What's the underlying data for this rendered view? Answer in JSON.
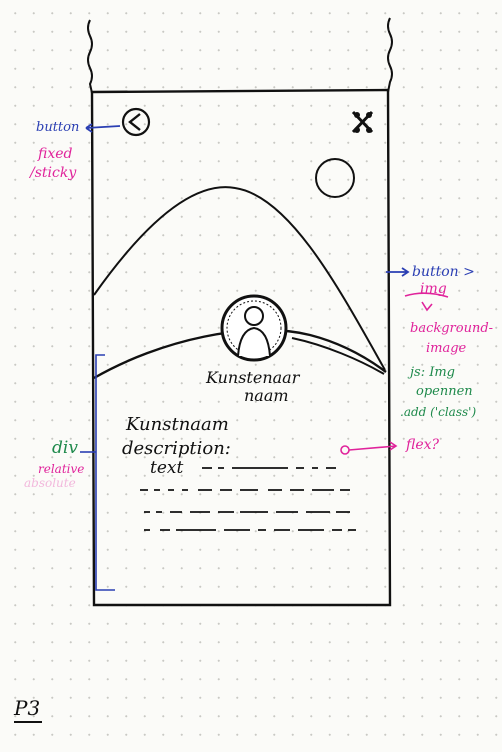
{
  "annotations": {
    "button_left": "button",
    "fixed": "fixed",
    "sticky": "/sticky",
    "button_img": "button >",
    "img": "img",
    "background_image_1": "background-",
    "background_image_2": "image",
    "js_1": "js: Img",
    "js_2": "opennen",
    "js_3": ".add ('class')",
    "flex": "flex?",
    "div": "div",
    "relative": "relative",
    "absolute": "absolute"
  },
  "screen": {
    "artist_name_1": "Kunstenaar",
    "artist_name_2": "naam",
    "artwork_name": "Kunstnaam",
    "description": "description:",
    "text": "text"
  },
  "page_label": "P3",
  "colors": {
    "ink": "#111111",
    "blue": "#2b3fb3",
    "pink": "#e0239b",
    "green": "#1f8a4c"
  }
}
